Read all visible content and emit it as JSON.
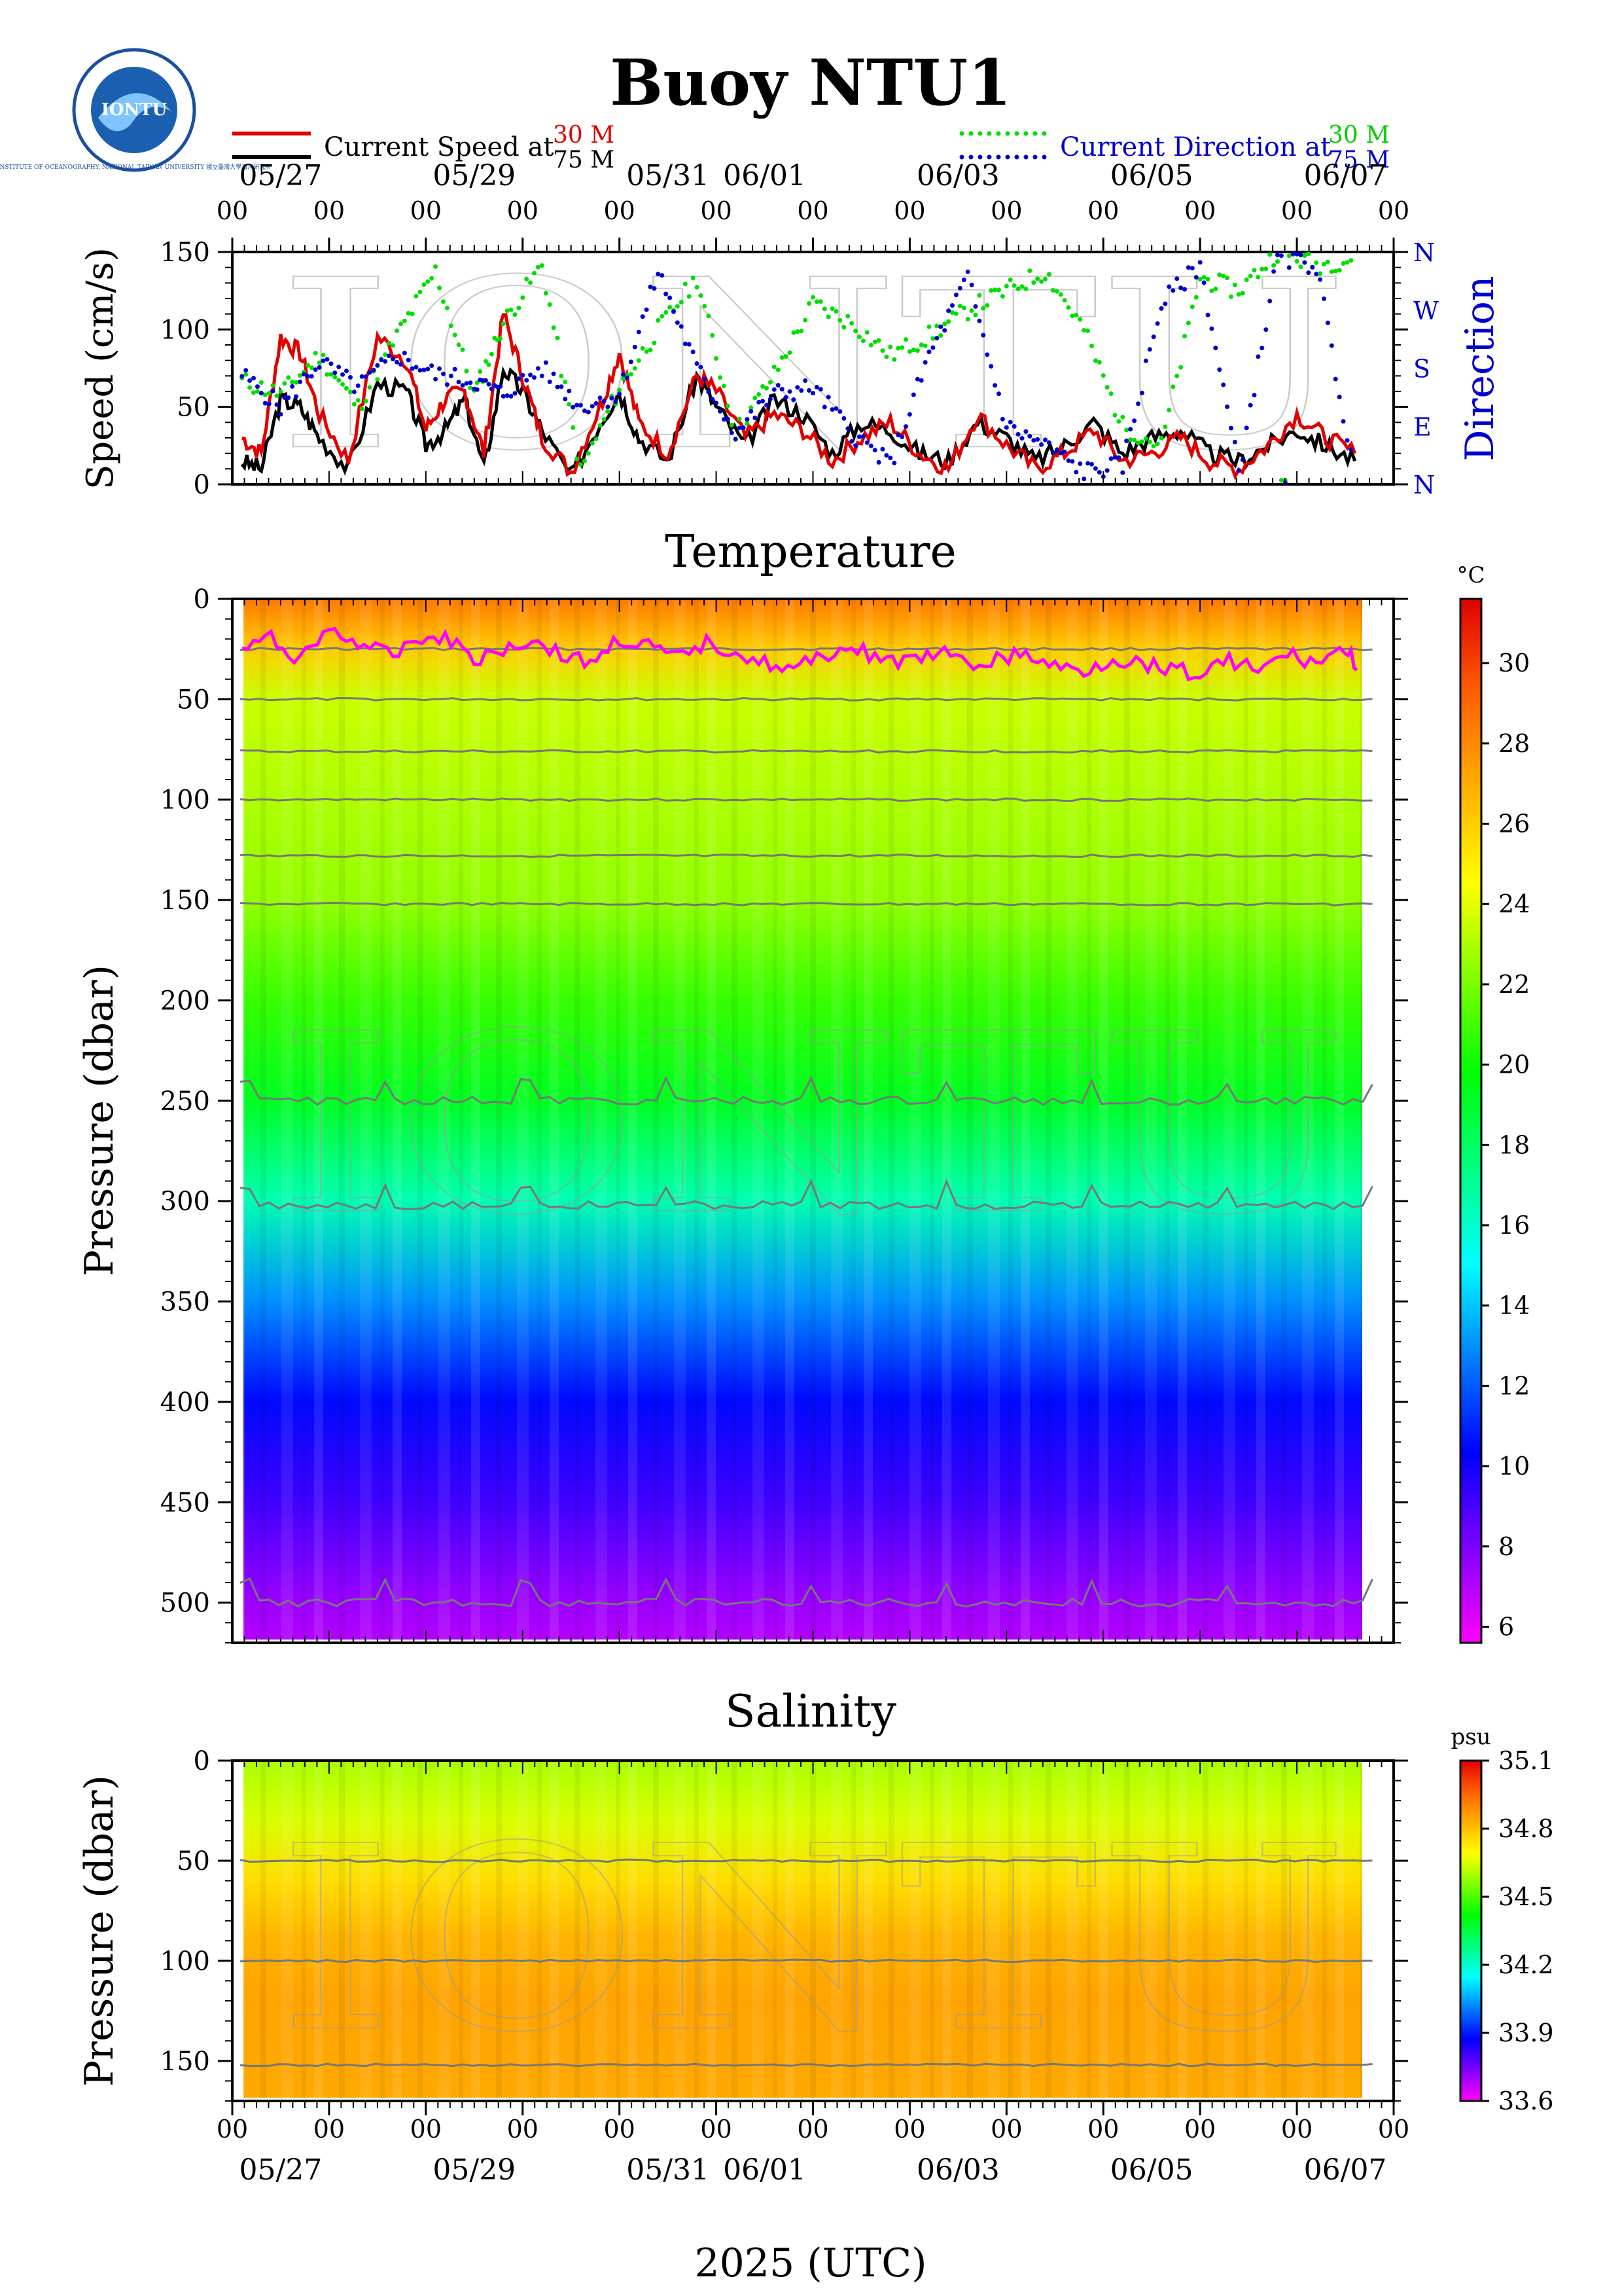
{
  "title": "Buoy NTU1",
  "logo": {
    "text": "IONTU",
    "ring_text": "INSTITUTE OF OCEANOGRAPHY, NATIONAL TAIWAN UNIVERSITY 國立臺灣大學海洋研究所"
  },
  "watermark": "IONTU",
  "legend": {
    "speed_prefix": "Current Speed at",
    "speed_depth_a": "30 M",
    "speed_depth_b": "75 M",
    "direction_prefix": "Current Direction at",
    "direction_depth_a": "30 M",
    "direction_depth_b": "75 M"
  },
  "colors": {
    "speed_30m": "#e00000",
    "speed_75m": "#000000",
    "dir_30m": "#00dd00",
    "dir_75m": "#0000cc",
    "mld_line": "#ff00ff",
    "isopycnal": "#777777"
  },
  "time_axis": {
    "days": 12,
    "hour_label": "00",
    "date_labels": [
      "05/27",
      "05/29",
      "05/31",
      "06/01",
      "06/03",
      "06/05",
      "06/07"
    ],
    "date_label_days": [
      0.5,
      2.5,
      4.5,
      5.5,
      7.5,
      9.5,
      11.5
    ],
    "xlabel": "2025 (UTC)"
  },
  "chart_data": [
    {
      "type": "line",
      "id": "current",
      "ylabel": "Speed (cm/s)",
      "ylim": [
        0,
        150
      ],
      "yticks": [
        0,
        50,
        100,
        150
      ],
      "y2label": "Direction",
      "y2ticks": [
        "N",
        "E",
        "S",
        "W",
        "N"
      ],
      "series": [
        {
          "name": "30 M",
          "quantity": "speed",
          "unit": "cm/s",
          "x": [
            0.1,
            0.3,
            0.5,
            0.7,
            0.9,
            1.2,
            1.5,
            1.8,
            2.0,
            2.2,
            2.4,
            2.6,
            2.8,
            3.0,
            3.2,
            3.5,
            3.8,
            4.0,
            4.2,
            4.5,
            4.8,
            5.0,
            5.3,
            5.6,
            5.9,
            6.2,
            6.5,
            6.8,
            7.1,
            7.4,
            7.7,
            8.0,
            8.3,
            8.6,
            8.9,
            9.2,
            9.5,
            9.8,
            10.1,
            10.4,
            10.7,
            11.0,
            11.3,
            11.6
          ],
          "y": [
            30,
            20,
            95,
            85,
            45,
            15,
            95,
            80,
            35,
            55,
            60,
            20,
            110,
            70,
            30,
            8,
            50,
            85,
            40,
            20,
            70,
            60,
            30,
            45,
            35,
            15,
            30,
            40,
            20,
            10,
            45,
            25,
            10,
            20,
            35,
            15,
            20,
            30,
            15,
            10,
            25,
            45,
            30,
            20
          ]
        },
        {
          "name": "75 M",
          "quantity": "speed",
          "unit": "cm/s",
          "x": [
            0.1,
            0.3,
            0.5,
            0.7,
            0.9,
            1.2,
            1.5,
            1.8,
            2.0,
            2.2,
            2.4,
            2.6,
            2.8,
            3.0,
            3.2,
            3.5,
            3.8,
            4.0,
            4.2,
            4.5,
            4.8,
            5.0,
            5.3,
            5.6,
            5.9,
            6.2,
            6.5,
            6.8,
            7.1,
            7.4,
            7.7,
            8.0,
            8.3,
            8.6,
            8.9,
            9.2,
            9.5,
            9.8,
            10.1,
            10.4,
            10.7,
            11.0,
            11.3,
            11.6
          ],
          "y": [
            15,
            10,
            55,
            50,
            30,
            10,
            65,
            60,
            25,
            35,
            55,
            10,
            75,
            60,
            35,
            5,
            40,
            60,
            30,
            15,
            70,
            50,
            25,
            55,
            45,
            20,
            40,
            35,
            20,
            15,
            40,
            30,
            15,
            25,
            40,
            20,
            30,
            35,
            20,
            15,
            25,
            35,
            25,
            15
          ]
        },
        {
          "name": "30 M",
          "quantity": "direction",
          "unit": "deg",
          "x": [
            0.1,
            0.5,
            0.9,
            1.3,
            1.7,
            2.1,
            2.5,
            2.8,
            3.2,
            3.6,
            4.0,
            4.4,
            4.8,
            5.2,
            5.6,
            6.0,
            6.4,
            6.8,
            7.2,
            7.6,
            8.0,
            8.4,
            8.8,
            9.2,
            9.6,
            10.0,
            10.4,
            10.8,
            11.2,
            11.6
          ],
          "y": [
            160,
            140,
            200,
            120,
            230,
            330,
            140,
            250,
            340,
            20,
            150,
            240,
            320,
            80,
            170,
            280,
            250,
            200,
            230,
            270,
            300,
            330,
            240,
            90,
            60,
            320,
            300,
            360,
            340,
            350
          ]
        },
        {
          "name": "75 M",
          "quantity": "direction",
          "unit": "deg",
          "x": [
            0.1,
            0.5,
            0.9,
            1.3,
            1.7,
            2.1,
            2.5,
            2.8,
            3.2,
            3.6,
            4.0,
            4.4,
            4.8,
            5.2,
            5.6,
            6.0,
            6.4,
            6.8,
            7.2,
            7.6,
            8.0,
            8.4,
            8.8,
            9.2,
            9.6,
            10.0,
            10.4,
            10.8,
            11.2,
            11.6
          ],
          "y": [
            170,
            120,
            190,
            150,
            200,
            170,
            160,
            140,
            180,
            120,
            140,
            330,
            180,
            80,
            140,
            150,
            80,
            30,
            200,
            320,
            90,
            60,
            20,
            30,
            280,
            340,
            20,
            350,
            340,
            10
          ]
        }
      ]
    },
    {
      "type": "heatmap",
      "id": "temperature",
      "title": "Temperature",
      "ylabel": "Pressure (dbar)",
      "ylim": [
        0,
        520
      ],
      "yticks": [
        0,
        50,
        100,
        150,
        200,
        250,
        300,
        350,
        400,
        450,
        500
      ],
      "colorbar": {
        "unit": "°C",
        "range": [
          5.6,
          31.6
        ],
        "ticks": [
          6,
          8,
          10,
          12,
          14,
          16,
          18,
          20,
          22,
          24,
          26,
          28,
          30
        ]
      },
      "depth_profile": {
        "pressure": [
          0,
          25,
          50,
          100,
          150,
          200,
          250,
          300,
          350,
          400,
          450,
          500,
          520
        ],
        "temperature": [
          28.5,
          26.0,
          23.5,
          23.0,
          22.5,
          20.8,
          19.2,
          16.5,
          13.0,
          10.5,
          9.2,
          7.5,
          7.0
        ]
      },
      "contour_levels_dbar": [
        25,
        50,
        76,
        100,
        128,
        152,
        250,
        302,
        500
      ],
      "mixed_layer_depth": {
        "x": [
          0.1,
          0.4,
          0.7,
          1.0,
          1.3,
          1.6,
          1.9,
          2.2,
          2.5,
          2.8,
          3.1,
          3.4,
          3.7,
          4.0,
          4.3,
          4.6,
          4.9,
          5.2,
          5.5,
          5.8,
          6.1,
          6.4,
          6.7,
          7.0,
          7.3,
          7.6,
          7.9,
          8.2,
          8.5,
          8.8,
          9.1,
          9.4,
          9.7,
          10.0,
          10.3,
          10.6,
          10.9,
          11.2,
          11.5,
          11.65
        ],
        "y": [
          25,
          20,
          30,
          15,
          22,
          28,
          20,
          18,
          30,
          25,
          20,
          28,
          32,
          20,
          24,
          30,
          22,
          26,
          32,
          36,
          28,
          24,
          30,
          32,
          26,
          34,
          30,
          28,
          34,
          36,
          30,
          32,
          34,
          38,
          30,
          36,
          28,
          32,
          25,
          35
        ]
      }
    },
    {
      "type": "heatmap",
      "id": "salinity",
      "title": "Salinity",
      "ylabel": "Pressure (dbar)",
      "ylim": [
        0,
        170
      ],
      "yticks": [
        0,
        50,
        100,
        150
      ],
      "colorbar": {
        "unit": "psu",
        "range": [
          33.6,
          35.1
        ],
        "ticks": [
          33.6,
          33.9,
          34.2,
          34.5,
          34.8,
          35.1
        ]
      },
      "depth_profile": {
        "pressure": [
          0,
          30,
          60,
          90,
          120,
          170
        ],
        "salinity": [
          34.6,
          34.65,
          34.75,
          34.82,
          34.85,
          34.84
        ]
      },
      "contour_levels_dbar": [
        50,
        100,
        152
      ]
    }
  ]
}
